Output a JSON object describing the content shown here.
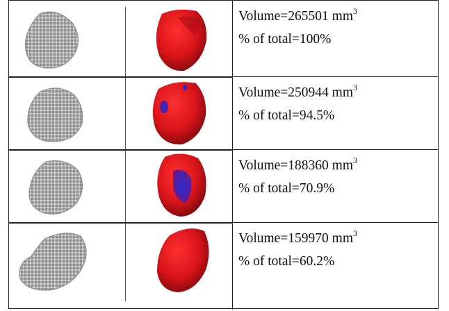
{
  "rows": [
    {
      "volume": "Volume=265501 mm",
      "exponent": "3",
      "percent": "% of total=100%"
    },
    {
      "volume": "Volume=250944 mm",
      "exponent": "3",
      "percent": "% of total=94.5%"
    },
    {
      "volume": "Volume=188360 mm",
      "exponent": "3",
      "percent": "% of total=70.9%"
    },
    {
      "volume": "Volume=159970 mm",
      "exponent": "3",
      "percent": "% of total=60.2%"
    }
  ],
  "colors": {
    "render_red": "#d8141a",
    "render_blue": "#2a2ad0",
    "voxel_gray": "#a8a8a8"
  }
}
